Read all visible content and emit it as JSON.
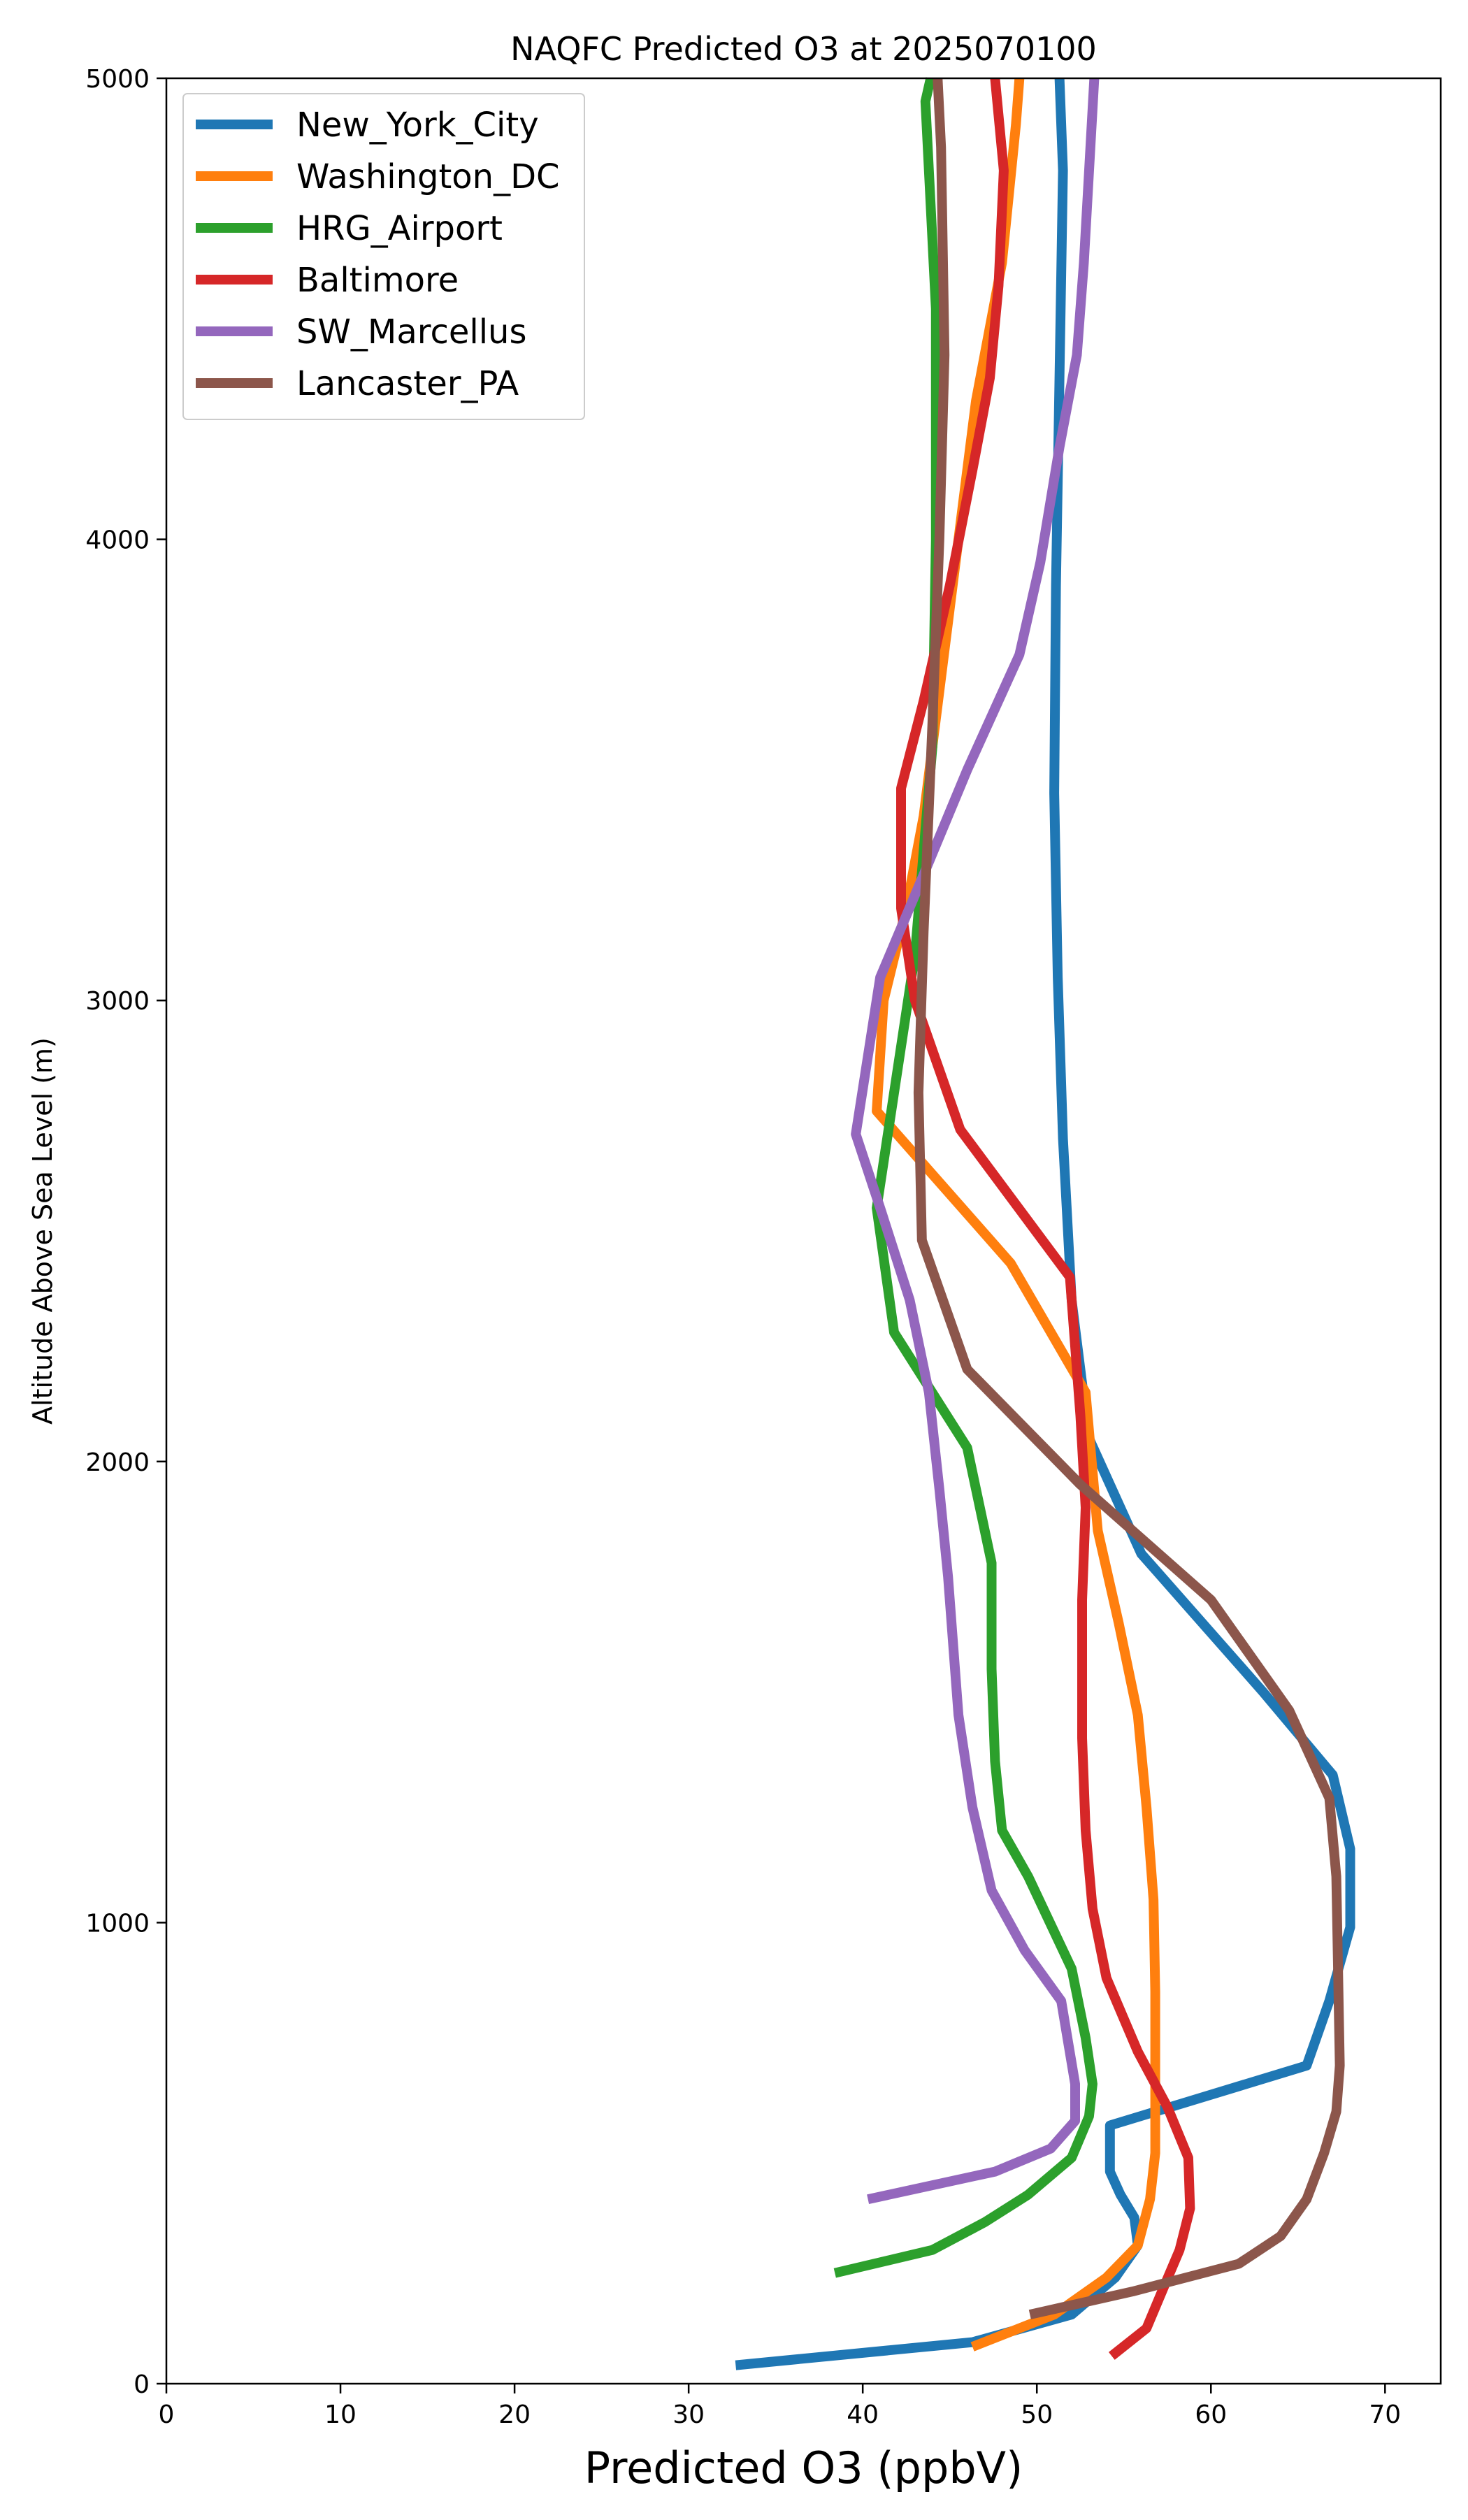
{
  "chart_data": {
    "type": "line",
    "title": "NAQFC Predicted O3 at 2025070100",
    "xlabel": "Predicted O3 (ppbV)",
    "ylabel": "Altitude Above Sea Level (m)",
    "xlim": [
      0,
      73.2
    ],
    "ylim": [
      0,
      5000
    ],
    "x_ticks": [
      0,
      10,
      20,
      30,
      40,
      50,
      60,
      70
    ],
    "y_ticks": [
      0,
      1000,
      2000,
      3000,
      4000,
      5000
    ],
    "grid": false,
    "legend_position": "top-left",
    "series": [
      {
        "name": "New_York_City",
        "color": "#1f77b4",
        "points": [
          [
            32.7,
            40
          ],
          [
            46.3,
            90
          ],
          [
            52.0,
            150
          ],
          [
            54.5,
            230
          ],
          [
            55.8,
            300
          ],
          [
            55.6,
            360
          ],
          [
            54.8,
            410
          ],
          [
            54.2,
            460
          ],
          [
            54.2,
            560
          ],
          [
            65.5,
            690
          ],
          [
            66.8,
            830
          ],
          [
            68.0,
            990
          ],
          [
            68.0,
            1160
          ],
          [
            67.0,
            1320
          ],
          [
            63.0,
            1500
          ],
          [
            56.0,
            1800
          ],
          [
            53.0,
            2050
          ],
          [
            52.0,
            2350
          ],
          [
            51.5,
            2700
          ],
          [
            51.2,
            3050
          ],
          [
            51.0,
            3450
          ],
          [
            51.1,
            3900
          ],
          [
            51.3,
            4350
          ],
          [
            51.5,
            4800
          ],
          [
            51.3,
            5000
          ]
        ]
      },
      {
        "name": "Washington_DC",
        "color": "#ff7f0e",
        "points": [
          [
            46.3,
            80
          ],
          [
            51.0,
            150
          ],
          [
            54.0,
            230
          ],
          [
            55.8,
            300
          ],
          [
            56.5,
            400
          ],
          [
            56.8,
            500
          ],
          [
            56.8,
            650
          ],
          [
            56.8,
            850
          ],
          [
            56.7,
            1050
          ],
          [
            56.3,
            1250
          ],
          [
            55.8,
            1450
          ],
          [
            54.7,
            1650
          ],
          [
            53.5,
            1850
          ],
          [
            52.8,
            2150
          ],
          [
            48.5,
            2430
          ],
          [
            40.8,
            2760
          ],
          [
            41.2,
            3000
          ],
          [
            42.5,
            3200
          ],
          [
            43.5,
            3400
          ],
          [
            44.5,
            3700
          ],
          [
            45.5,
            4000
          ],
          [
            46.5,
            4300
          ],
          [
            48.0,
            4600
          ],
          [
            48.8,
            4900
          ],
          [
            49.0,
            5000
          ]
        ]
      },
      {
        "name": "HRG_Airport",
        "color": "#2ca02c",
        "points": [
          [
            38.4,
            240
          ],
          [
            44.0,
            290
          ],
          [
            47.0,
            350
          ],
          [
            49.5,
            410
          ],
          [
            52.0,
            490
          ],
          [
            53.0,
            580
          ],
          [
            53.2,
            650
          ],
          [
            52.8,
            750
          ],
          [
            52.0,
            900
          ],
          [
            49.5,
            1100
          ],
          [
            48.0,
            1200
          ],
          [
            47.6,
            1350
          ],
          [
            47.4,
            1550
          ],
          [
            47.4,
            1780
          ],
          [
            46.0,
            2030
          ],
          [
            41.8,
            2280
          ],
          [
            40.8,
            2550
          ],
          [
            41.8,
            2800
          ],
          [
            43.0,
            3100
          ],
          [
            44.0,
            3550
          ],
          [
            44.2,
            4000
          ],
          [
            44.2,
            4500
          ],
          [
            43.8,
            4800
          ],
          [
            43.6,
            4950
          ],
          [
            43.9,
            5000
          ]
        ]
      },
      {
        "name": "Baltimore",
        "color": "#d62728",
        "points": [
          [
            54.3,
            60
          ],
          [
            56.3,
            120
          ],
          [
            57.3,
            210
          ],
          [
            58.2,
            290
          ],
          [
            58.8,
            380
          ],
          [
            58.7,
            490
          ],
          [
            57.5,
            600
          ],
          [
            55.8,
            720
          ],
          [
            54.0,
            880
          ],
          [
            53.2,
            1030
          ],
          [
            52.8,
            1200
          ],
          [
            52.6,
            1400
          ],
          [
            52.6,
            1700
          ],
          [
            52.8,
            1900
          ],
          [
            52.5,
            2100
          ],
          [
            51.9,
            2400
          ],
          [
            45.6,
            2720
          ],
          [
            43.0,
            3000
          ],
          [
            42.2,
            3200
          ],
          [
            42.2,
            3460
          ],
          [
            43.5,
            3650
          ],
          [
            45.0,
            3900
          ],
          [
            46.3,
            4150
          ],
          [
            47.3,
            4350
          ],
          [
            47.8,
            4550
          ],
          [
            48.1,
            4800
          ],
          [
            47.6,
            5000
          ]
        ]
      },
      {
        "name": "SW_Marcellus",
        "color": "#9467bd",
        "points": [
          [
            40.3,
            400
          ],
          [
            47.6,
            460
          ],
          [
            50.8,
            510
          ],
          [
            52.2,
            570
          ],
          [
            52.2,
            650
          ],
          [
            51.4,
            830
          ],
          [
            49.3,
            940
          ],
          [
            47.4,
            1070
          ],
          [
            46.3,
            1250
          ],
          [
            45.5,
            1450
          ],
          [
            44.9,
            1750
          ],
          [
            44.4,
            1940
          ],
          [
            43.8,
            2150
          ],
          [
            42.7,
            2350
          ],
          [
            41.0,
            2550
          ],
          [
            39.6,
            2710
          ],
          [
            41.0,
            3050
          ],
          [
            43.8,
            3300
          ],
          [
            46.0,
            3500
          ],
          [
            49.0,
            3750
          ],
          [
            50.2,
            3950
          ],
          [
            51.3,
            4200
          ],
          [
            52.3,
            4400
          ],
          [
            52.7,
            4600
          ],
          [
            53.3,
            5000
          ]
        ]
      },
      {
        "name": "Lancaster_PA",
        "color": "#8c564b",
        "points": [
          [
            49.6,
            150
          ],
          [
            55.5,
            200
          ],
          [
            61.6,
            260
          ],
          [
            64.0,
            320
          ],
          [
            65.5,
            400
          ],
          [
            66.5,
            500
          ],
          [
            67.2,
            590
          ],
          [
            67.4,
            690
          ],
          [
            67.3,
            900
          ],
          [
            67.2,
            1100
          ],
          [
            66.8,
            1270
          ],
          [
            64.5,
            1460
          ],
          [
            60.0,
            1700
          ],
          [
            52.5,
            1950
          ],
          [
            46.0,
            2200
          ],
          [
            43.4,
            2480
          ],
          [
            43.2,
            2800
          ],
          [
            43.5,
            3150
          ],
          [
            44.0,
            3600
          ],
          [
            44.4,
            4000
          ],
          [
            44.7,
            4400
          ],
          [
            44.5,
            4850
          ],
          [
            44.3,
            5000
          ]
        ]
      }
    ]
  }
}
